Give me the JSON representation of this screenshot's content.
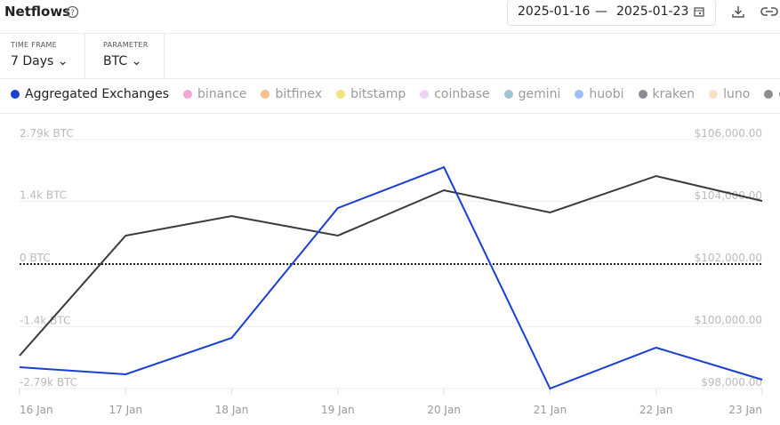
{
  "header": {
    "title": "Netflows",
    "date_from": "2025-01-16",
    "date_sep": "—",
    "date_to": "2025-01-23"
  },
  "controls": [
    {
      "label": "TIME FRAME",
      "value": "7 Days"
    },
    {
      "label": "PARAMETER",
      "value": "BTC"
    }
  ],
  "chart_data": {
    "type": "line",
    "categories": [
      "16 Jan",
      "17 Jan",
      "18 Jan",
      "19 Jan",
      "20 Jan",
      "21 Jan",
      "22 Jan",
      "23 Jan"
    ],
    "series": [
      {
        "name": "Aggregated Exchanges",
        "color": "#1a3fd1",
        "values": [
          -2312,
          -2471,
          -1654,
          1256,
          2172,
          -2790,
          -1873,
          -2591
        ]
      },
      {
        "color": "#3a3a3a",
        "axis": "y2",
        "values": [
          99057,
          102914,
          103543,
          102914,
          104371,
          103657,
          104829,
          104029
        ]
      }
    ],
    "inactive_series": [
      {
        "name": "binance",
        "color": "#f3a6d6"
      },
      {
        "name": "bitfinex",
        "color": "#f5c08e"
      },
      {
        "name": "bitstamp",
        "color": "#f2e47e"
      },
      {
        "name": "coinbase",
        "color": "#ecd3f7"
      },
      {
        "name": "gemini",
        "color": "#9fc6d4"
      },
      {
        "name": "huobi",
        "color": "#9ebff6"
      },
      {
        "name": "kraken",
        "color": "#8c8c92"
      },
      {
        "name": "luno",
        "color": "#f6e3c6"
      },
      {
        "name": "okex",
        "color": "#8c8c92"
      }
    ],
    "ylim": [
      -2790,
      2790
    ],
    "yticks": [
      {
        "value": 2790,
        "label": "2.79k BTC"
      },
      {
        "value": 1400,
        "label": "1.4k BTC"
      },
      {
        "value": 0,
        "label": "0 BTC"
      },
      {
        "value": -1400,
        "label": "-1.4k BTC"
      },
      {
        "value": -2790,
        "label": "-2.79k BTC"
      }
    ],
    "y2lim": [
      98000,
      106000
    ],
    "y2ticks": [
      {
        "value": 106000,
        "label": "$106,000.00"
      },
      {
        "value": 104000,
        "label": "$104,000.00"
      },
      {
        "value": 102000,
        "label": "$102,000.00"
      },
      {
        "value": 100000,
        "label": "$100,000.00"
      },
      {
        "value": 98000,
        "label": "$98,000.00"
      }
    ],
    "grid": true
  }
}
